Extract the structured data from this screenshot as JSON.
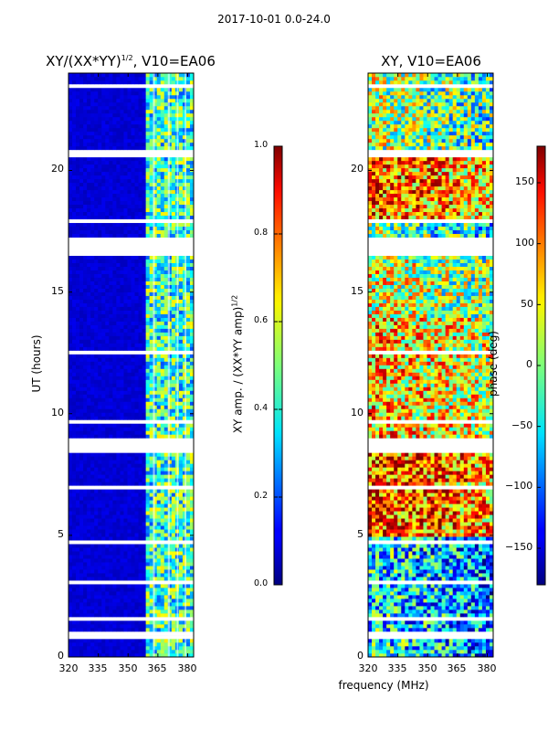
{
  "figure_title": "2017-10-01 0.0-24.0",
  "chart_data": [
    {
      "type": "heatmap",
      "title": "XY/(XX*YY)^{1/2}, V10=EA06",
      "title_main": "XY/(XX*YY)",
      "title_sup": "1/2",
      "title_rest": ", V10=EA06",
      "xlabel": "",
      "ylabel": "UT (hours)",
      "xlim": [
        320,
        383
      ],
      "ylim": [
        0,
        24
      ],
      "xticks": [
        "320",
        "335",
        "350",
        "365",
        "380"
      ],
      "yticks": [
        "0",
        "5",
        "10",
        "15",
        "20"
      ],
      "colorbar": {
        "label": "XY amp. / (XX*YY amp)^{1/2}",
        "label_main": "XY amp. / (XX*YY amp)",
        "label_sup": "1/2",
        "range": [
          0.0,
          1.0
        ],
        "ticks": [
          "0.0",
          "0.2",
          "0.4",
          "0.6",
          "0.8",
          "1.0"
        ],
        "colormap": "jet"
      }
    },
    {
      "type": "heatmap",
      "title": "XY, V10=EA06",
      "xlabel": "frequency (MHz)",
      "ylabel": "",
      "xlim": [
        320,
        383
      ],
      "ylim": [
        0,
        24
      ],
      "xticks": [
        "320",
        "335",
        "350",
        "365",
        "380"
      ],
      "yticks": [
        "0",
        "5",
        "10",
        "15",
        "20"
      ],
      "colorbar": {
        "label": "phase (deg)",
        "range": [
          -180,
          180
        ],
        "ticks": [
          "150",
          "100",
          "50",
          "0",
          "−50",
          "−100",
          "−150"
        ],
        "colormap": "jet"
      }
    }
  ]
}
